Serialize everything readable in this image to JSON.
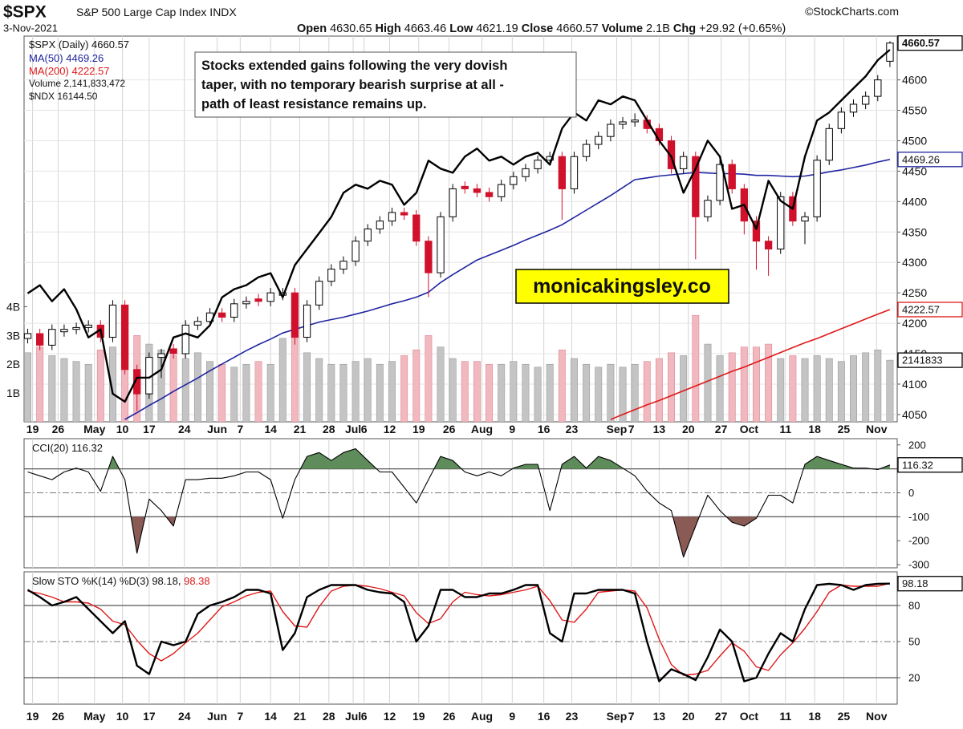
{
  "chart_data": {
    "type": "candlestick",
    "symbol": "$SPX",
    "name": "S&P 500 Large Cap Index INDX",
    "source": "©StockCharts.com",
    "date": "3-Nov-2021",
    "header_labels": {
      "open": "Open",
      "high": "High",
      "low": "Low",
      "close": "Close",
      "volume": "Volume",
      "chg": "Chg"
    },
    "volume_header": "2.1B",
    "change": "+29.92 (+0.65%)",
    "legend": {
      "price": "$SPX (Daily)",
      "ma50": "MA(50)",
      "ma200": "MA(200)",
      "volume": "Volume 2,141,833,472",
      "ndx": "$NDX"
    },
    "annotation": [
      "Stocks extended gains following the very dovish",
      "taper, with no temporary bearish surprise at all -",
      "path of least resistance remains up."
    ],
    "watermark": "monicakingsley.co",
    "xlim": [
      -0.3,
      71.6
    ],
    "xticks": [
      {
        "value": 0.4,
        "label": "19"
      },
      {
        "value": 2.5,
        "label": "26"
      },
      {
        "value": 5.5,
        "label": "May"
      },
      {
        "value": 7.8,
        "label": "10"
      },
      {
        "value": 10.0,
        "label": "17"
      },
      {
        "value": 12.9,
        "label": "24"
      },
      {
        "value": 15.6,
        "label": "Jun"
      },
      {
        "value": 17.5,
        "label": "7"
      },
      {
        "value": 20.0,
        "label": "14"
      },
      {
        "value": 22.4,
        "label": "21"
      },
      {
        "value": 24.8,
        "label": "28"
      },
      {
        "value": 26.8,
        "label": "Jul"
      },
      {
        "value": 27.7,
        "label": "6"
      },
      {
        "value": 29.8,
        "label": "12"
      },
      {
        "value": 32.2,
        "label": "19"
      },
      {
        "value": 34.7,
        "label": "26"
      },
      {
        "value": 37.4,
        "label": "Aug"
      },
      {
        "value": 39.9,
        "label": "9"
      },
      {
        "value": 42.5,
        "label": "16"
      },
      {
        "value": 44.8,
        "label": "23"
      },
      {
        "value": 48.5,
        "label": "Sep"
      },
      {
        "value": 49.7,
        "label": "7"
      },
      {
        "value": 52.0,
        "label": "13"
      },
      {
        "value": 54.4,
        "label": "20"
      },
      {
        "value": 57.1,
        "label": "27"
      },
      {
        "value": 59.4,
        "label": "Oct"
      },
      {
        "value": 62.4,
        "label": "11"
      },
      {
        "value": 64.8,
        "label": "18"
      },
      {
        "value": 67.2,
        "label": "25"
      },
      {
        "value": 69.9,
        "label": "Nov"
      }
    ],
    "ylim": [
      4038,
      4672
    ],
    "yticks": [
      4050,
      4100,
      4150,
      4200,
      4250,
      4300,
      4350,
      4400,
      4450,
      4500,
      4550,
      4600
    ],
    "up_color": "#ffffff",
    "down_color": "#d0112b",
    "edge_color": "#000000",
    "ohlc": [
      [
        4175,
        4191,
        4167,
        4183
      ],
      [
        4183,
        4191,
        4156,
        4164
      ],
      [
        4164,
        4198,
        4156,
        4190
      ],
      [
        4186,
        4198,
        4178,
        4190
      ],
      [
        4190,
        4201,
        4182,
        4193
      ],
      [
        4193,
        4205,
        4185,
        4197
      ],
      [
        4197,
        4205,
        4169,
        4177
      ],
      [
        4177,
        4238,
        4169,
        4230
      ],
      [
        4230,
        4238,
        4116,
        4124
      ],
      [
        4124,
        4132,
        4056,
        4084
      ],
      [
        4084,
        4152,
        4076,
        4144
      ],
      [
        4144,
        4158,
        4110,
        4150
      ],
      [
        4158,
        4166,
        4142,
        4150
      ],
      [
        4150,
        4205,
        4142,
        4197
      ],
      [
        4197,
        4211,
        4189,
        4203
      ],
      [
        4203,
        4225,
        4195,
        4217
      ],
      [
        4217,
        4225,
        4202,
        4210
      ],
      [
        4210,
        4240,
        4202,
        4232
      ],
      [
        4232,
        4244,
        4224,
        4236
      ],
      [
        4240,
        4248,
        4228,
        4236
      ],
      [
        4236,
        4258,
        4228,
        4250
      ],
      [
        4246,
        4258,
        4238,
        4250
      ],
      [
        4250,
        4258,
        4165,
        4177
      ],
      [
        4177,
        4238,
        4169,
        4230
      ],
      [
        4230,
        4277,
        4222,
        4269
      ],
      [
        4269,
        4297,
        4261,
        4289
      ],
      [
        4289,
        4310,
        4281,
        4302
      ],
      [
        4302,
        4343,
        4294,
        4335
      ],
      [
        4335,
        4363,
        4327,
        4355
      ],
      [
        4355,
        4376,
        4347,
        4368
      ],
      [
        4368,
        4390,
        4360,
        4382
      ],
      [
        4382,
        4390,
        4370,
        4378
      ],
      [
        4378,
        4386,
        4327,
        4335
      ],
      [
        4335,
        4343,
        4243,
        4283
      ],
      [
        4283,
        4383,
        4275,
        4375
      ],
      [
        4375,
        4429,
        4367,
        4421
      ],
      [
        4425,
        4433,
        4413,
        4421
      ],
      [
        4421,
        4429,
        4407,
        4415
      ],
      [
        4415,
        4423,
        4400,
        4408
      ],
      [
        4408,
        4436,
        4400,
        4428
      ],
      [
        4428,
        4449,
        4420,
        4441
      ],
      [
        4441,
        4462,
        4433,
        4454
      ],
      [
        4454,
        4476,
        4446,
        4468
      ],
      [
        4468,
        4482,
        4460,
        4474
      ],
      [
        4474,
        4482,
        4370,
        4421
      ],
      [
        4421,
        4482,
        4413,
        4474
      ],
      [
        4474,
        4502,
        4466,
        4494
      ],
      [
        4494,
        4515,
        4486,
        4507
      ],
      [
        4507,
        4535,
        4499,
        4527
      ],
      [
        4527,
        4539,
        4519,
        4531
      ],
      [
        4531,
        4545,
        4523,
        4534
      ],
      [
        4534,
        4542,
        4512,
        4520
      ],
      [
        4520,
        4528,
        4492,
        4500
      ],
      [
        4500,
        4508,
        4446,
        4454
      ],
      [
        4454,
        4482,
        4446,
        4474
      ],
      [
        4474,
        4482,
        4305,
        4375
      ],
      [
        4375,
        4410,
        4367,
        4402
      ],
      [
        4402,
        4469,
        4394,
        4461
      ],
      [
        4461,
        4469,
        4413,
        4421
      ],
      [
        4421,
        4429,
        4346,
        4368
      ],
      [
        4368,
        4376,
        4288,
        4335
      ],
      [
        4335,
        4343,
        4278,
        4322
      ],
      [
        4322,
        4416,
        4314,
        4408
      ],
      [
        4408,
        4416,
        4360,
        4368
      ],
      [
        4368,
        4383,
        4330,
        4375
      ],
      [
        4375,
        4476,
        4367,
        4468
      ],
      [
        4468,
        4528,
        4460,
        4520
      ],
      [
        4520,
        4555,
        4512,
        4547
      ],
      [
        4547,
        4568,
        4539,
        4560
      ],
      [
        4560,
        4581,
        4552,
        4573
      ],
      [
        4573,
        4608,
        4565,
        4600
      ],
      [
        4630.65,
        4663.46,
        4621.19,
        4660.57
      ]
    ],
    "ma50": {
      "color": "#1f24a0",
      "values": [
        null,
        null,
        null,
        null,
        null,
        null,
        null,
        null,
        4042,
        4053,
        4065,
        4076,
        4088,
        4099,
        4110,
        4122,
        4133,
        4144,
        4155,
        4165,
        4174,
        4184,
        4190,
        4196,
        4202,
        4206,
        4210,
        4215,
        4220,
        4226,
        4232,
        4237,
        4243,
        4251,
        4267,
        4280,
        4292,
        4304,
        4312,
        4320,
        4328,
        4337,
        4345,
        4353,
        4362,
        4374,
        4386,
        4398,
        4410,
        4423,
        4436,
        4439,
        4442,
        4444,
        4446,
        4448,
        4447,
        4446,
        4446,
        4445,
        4443,
        4443,
        4442,
        4441,
        4442,
        4445,
        4449,
        4452,
        4456,
        4460,
        4465,
        4469.26
      ]
    },
    "ma200": {
      "color": "#e01818",
      "values": [
        null,
        null,
        null,
        null,
        null,
        null,
        null,
        null,
        null,
        null,
        null,
        null,
        null,
        null,
        null,
        null,
        null,
        null,
        null,
        null,
        null,
        null,
        null,
        null,
        null,
        null,
        null,
        null,
        null,
        null,
        null,
        null,
        null,
        null,
        null,
        null,
        null,
        null,
        null,
        null,
        null,
        null,
        null,
        null,
        null,
        null,
        null,
        null,
        4042,
        4050,
        4058,
        4066,
        4073,
        4081,
        4089,
        4097,
        4105,
        4113,
        4121,
        4128,
        4136,
        4144,
        4152,
        4160,
        4168,
        4175,
        4183,
        4191,
        4199,
        4207,
        4215,
        4222.57
      ]
    },
    "ndx": {
      "color": "#000000",
      "ylim": [
        12700,
        16271
      ],
      "value_label": "16144.50",
      "values": [
        13890,
        13965,
        13816,
        13928,
        13742,
        13481,
        13556,
        12960,
        12886,
        13109,
        13109,
        13184,
        13481,
        13518,
        13481,
        13593,
        13853,
        13928,
        13965,
        14039,
        14076,
        13853,
        14151,
        14300,
        14448,
        14597,
        14820,
        14895,
        14858,
        14932,
        14895,
        14709,
        14820,
        15118,
        15044,
        15006,
        15155,
        15230,
        15118,
        15155,
        15081,
        15155,
        15192,
        15081,
        15416,
        15564,
        15490,
        15676,
        15639,
        15713,
        15676,
        15490,
        15304,
        15155,
        14820,
        15044,
        15304,
        15155,
        14672,
        14709,
        14486,
        14932,
        14746,
        14672,
        15155,
        15490,
        15564,
        15676,
        15788,
        15899,
        16048,
        16144.5
      ]
    },
    "volume": {
      "ylim": [
        0,
        13.4
      ],
      "yticks": [
        {
          "value": 1,
          "label": "1B"
        },
        {
          "value": 2,
          "label": "2B"
        },
        {
          "value": 3,
          "label": "3B"
        },
        {
          "value": 4,
          "label": "4B"
        }
      ],
      "up_color": "#c4c4c4",
      "down_color": "#f2b8bf",
      "axis_label": "2141833",
      "values": [
        2.4,
        2.6,
        2.3,
        2.2,
        2.1,
        2.0,
        2.5,
        2.6,
        2.9,
        3.0,
        2.7,
        2.5,
        2.3,
        2.2,
        2.4,
        2.1,
        2.0,
        1.9,
        2.0,
        2.1,
        2.0,
        2.9,
        3.1,
        2.4,
        2.2,
        2.0,
        2.0,
        2.1,
        2.2,
        2.0,
        2.1,
        2.3,
        2.5,
        3.0,
        2.6,
        2.2,
        2.1,
        2.1,
        2.0,
        2.0,
        2.1,
        2.0,
        1.9,
        2.0,
        2.5,
        2.2,
        2.0,
        1.9,
        2.0,
        1.9,
        2.0,
        2.1,
        2.2,
        2.4,
        2.3,
        3.7,
        2.7,
        2.3,
        2.4,
        2.6,
        2.6,
        2.7,
        2.2,
        2.3,
        2.2,
        2.3,
        2.2,
        2.1,
        2.3,
        2.4,
        2.5,
        2.141833472
      ]
    },
    "cci": {
      "name": "CCI(20)",
      "ylim": [
        -313,
        226
      ],
      "yticks": [
        200,
        100,
        0,
        -100,
        -200,
        -300
      ],
      "bands": [
        100,
        -100
      ],
      "mid": 0,
      "color": "#000000",
      "high_fill": "#5e8c5a",
      "low_fill": "#8a5a55",
      "values": [
        87,
        71,
        55,
        87,
        103,
        87,
        6,
        152,
        55,
        -252,
        -26,
        -74,
        -139,
        55,
        55,
        61,
        61,
        71,
        87,
        87,
        55,
        -106,
        55,
        152,
        168,
        135,
        168,
        184,
        135,
        87,
        87,
        23,
        -42,
        55,
        152,
        135,
        87,
        71,
        87,
        71,
        103,
        119,
        119,
        -74,
        119,
        152,
        103,
        152,
        135,
        103,
        71,
        6,
        -42,
        -74,
        -268,
        -139,
        -10,
        -74,
        -123,
        -139,
        -106,
        -10,
        -10,
        -42,
        119,
        152,
        135,
        119,
        103,
        103,
        97,
        116.32
      ]
    },
    "sto": {
      "name": "Slow STO %K(14) %D(3)",
      "ylim": [
        -2,
        108
      ],
      "yticks": [
        80,
        50,
        20
      ],
      "bands": [
        80,
        20
      ],
      "mid": 50,
      "k": {
        "color": "#000000",
        "values": [
          93,
          87,
          80,
          83,
          87,
          77,
          67,
          57,
          67,
          30,
          23,
          50,
          47,
          50,
          73,
          80,
          83,
          87,
          93,
          93,
          90,
          43,
          57,
          87,
          93,
          97,
          97,
          97,
          93,
          91,
          90,
          83,
          50,
          63,
          93,
          93,
          87,
          87,
          90,
          90,
          93,
          97,
          97,
          57,
          50,
          90,
          90,
          93,
          93,
          93,
          90,
          50,
          17,
          27,
          23,
          18,
          37,
          60,
          50,
          17,
          20,
          40,
          57,
          50,
          77,
          97,
          98,
          97,
          93,
          97,
          98,
          98.18
        ]
      },
      "d": {
        "color": "#e01818",
        "values": [
          92,
          90,
          87,
          83,
          83,
          82,
          77,
          67,
          64,
          51,
          40,
          34,
          40,
          49,
          57,
          68,
          79,
          83,
          88,
          91,
          92,
          75,
          63,
          62,
          79,
          92,
          96,
          97,
          96,
          94,
          91,
          88,
          74,
          65,
          69,
          83,
          91,
          89,
          88,
          89,
          91,
          93,
          96,
          84,
          68,
          66,
          77,
          91,
          92,
          93,
          92,
          78,
          52,
          31,
          22,
          23,
          26,
          38,
          49,
          42,
          29,
          26,
          39,
          49,
          61,
          75,
          91,
          97,
          96,
          96,
          96,
          98.38
        ]
      }
    }
  }
}
